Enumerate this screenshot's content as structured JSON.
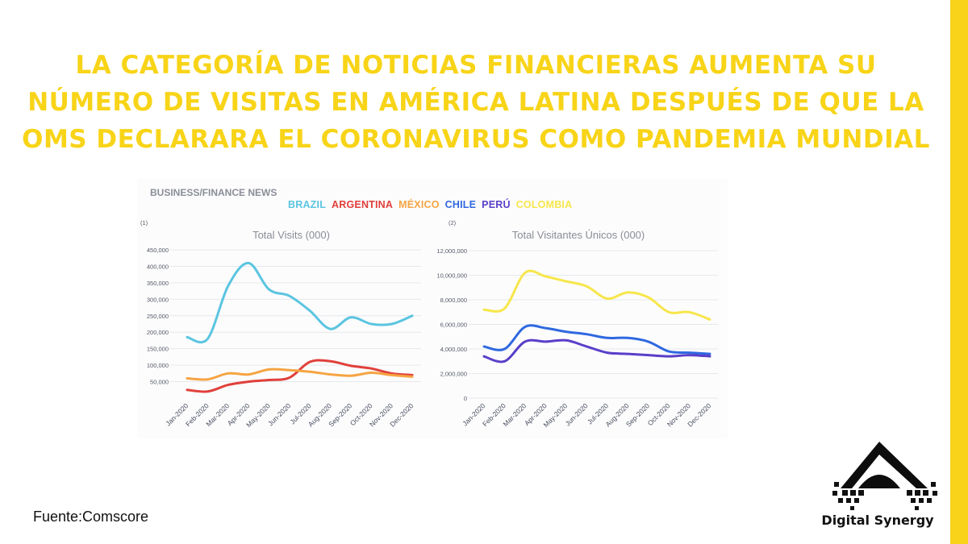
{
  "title": "LA CATEGORÍA DE NOTICIAS FINANCIERAS AUMENTA SU NÚMERO DE VISITAS EN AMÉRICA LATINA DESPUÉS DE QUE LA OMS DECLARARA EL CORONAVIRUS COMO PANDEMIA MUNDIAL",
  "panel_title": "BUSINESS/FINANCE NEWS",
  "legend": [
    {
      "label": "BRAZIL",
      "color": "#5bc5e0"
    },
    {
      "label": "ARGENTINA",
      "color": "#e0403a"
    },
    {
      "label": "MÉXICO",
      "color": "#f5a442"
    },
    {
      "label": "CHILE",
      "color": "#2f68e0"
    },
    {
      "label": "PERÚ",
      "color": "#5a3fc8"
    },
    {
      "label": "COLOMBIA",
      "color": "#f7e64a"
    }
  ],
  "source": "Fuente:Comscore",
  "logo": {
    "text": "Digital Synergy",
    "icon": "digital-synergy-logo-icon"
  },
  "chart_data": [
    {
      "type": "line",
      "number_label": "(1)",
      "title": "Total Visits (000)",
      "categories": [
        "Jan-2020",
        "Feb-2020",
        "Mar-2020",
        "Apr-2020",
        "May-2020",
        "Jun-2020",
        "Jul-2020",
        "Aug-2020",
        "Sep-2020",
        "Oct-2020",
        "Nov-2020",
        "Dec-2020"
      ],
      "yticks": [
        "450,000",
        "400,000",
        "350,000",
        "300,000",
        "250,000",
        "200,000",
        "150,000",
        "100,000",
        "50,000"
      ],
      "ylim": [
        0,
        450000
      ],
      "series": [
        {
          "name": "BRAZIL",
          "color": "#5bc5e0",
          "values": [
            185000,
            180000,
            340000,
            410000,
            330000,
            310000,
            265000,
            210000,
            245000,
            225000,
            225000,
            250000
          ]
        },
        {
          "name": "ARGENTINA",
          "color": "#e0403a",
          "values": [
            25000,
            20000,
            40000,
            50000,
            55000,
            62000,
            110000,
            112000,
            98000,
            90000,
            75000,
            70000
          ]
        },
        {
          "name": "MÉXICO",
          "color": "#f5a442",
          "values": [
            60000,
            57000,
            75000,
            72000,
            87000,
            85000,
            80000,
            72000,
            68000,
            77000,
            70000,
            65000
          ]
        }
      ]
    },
    {
      "type": "line",
      "number_label": "(2)",
      "title": "Total Visitantes Únicos (000)",
      "categories": [
        "Jan-2020",
        "Feb-2020",
        "Mar-2020",
        "Apr-2020",
        "May-2020",
        "Jun-2020",
        "Jul-2020",
        "Aug-2020",
        "Sep-2020",
        "Oct-2020",
        "Nov-2020",
        "Dec-2020"
      ],
      "yticks": [
        "12,000,000",
        "10,000,000",
        "8,000,000",
        "6,000,000",
        "4,000,000",
        "2,000,000",
        "0"
      ],
      "ylim": [
        0,
        12000000
      ],
      "series": [
        {
          "name": "COLOMBIA",
          "color": "#f7e64a",
          "values": [
            7200000,
            7300000,
            10200000,
            9900000,
            9500000,
            9100000,
            8100000,
            8600000,
            8200000,
            7000000,
            7000000,
            6400000
          ]
        },
        {
          "name": "CHILE",
          "color": "#2f68e0",
          "values": [
            4200000,
            4000000,
            5800000,
            5700000,
            5400000,
            5200000,
            4900000,
            4900000,
            4600000,
            3800000,
            3700000,
            3600000
          ]
        },
        {
          "name": "PERÚ",
          "color": "#5a3fc8",
          "values": [
            3400000,
            3000000,
            4600000,
            4600000,
            4700000,
            4200000,
            3700000,
            3600000,
            3500000,
            3400000,
            3500000,
            3400000
          ]
        }
      ]
    }
  ]
}
